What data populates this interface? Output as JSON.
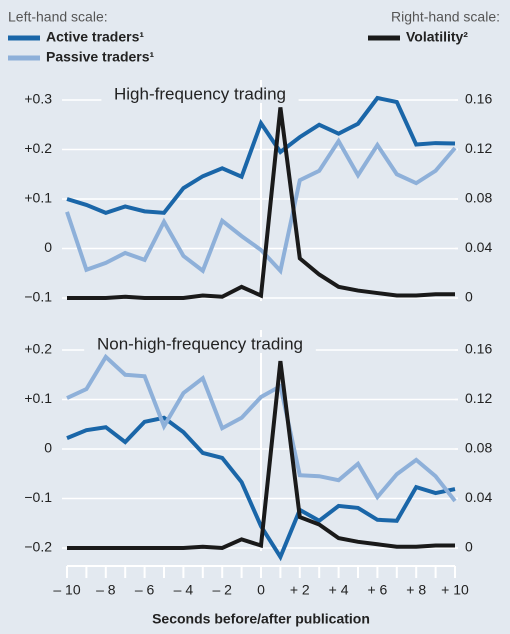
{
  "chart_data": [
    {
      "type": "line",
      "title": "High-frequency trading",
      "left_scale_label": "Left-hand scale:",
      "right_scale_label": "Right-hand scale:",
      "x": [
        -10,
        -9,
        -8,
        -7,
        -6,
        -5,
        -4,
        -3,
        -2,
        -1,
        0,
        1,
        2,
        3,
        4,
        5,
        6,
        7,
        8,
        9,
        10
      ],
      "xlim": [
        -10,
        10
      ],
      "ylim": [
        -0.1,
        0.3
      ],
      "yticks": [
        {
          "value": 0.3,
          "label": "+0.3"
        },
        {
          "value": 0.2,
          "label": "+0.2"
        },
        {
          "value": 0.1,
          "label": "+0.1"
        },
        0,
        {
          "value": -0.1,
          "label": "−0.1"
        }
      ],
      "y2lim": [
        0,
        0.16
      ],
      "y2ticks": [
        0.16,
        0.12,
        0.08,
        0.04,
        0
      ],
      "grid": true,
      "series": [
        {
          "name": "Active traders¹",
          "color": "#1a66a8",
          "values": [
            0.1,
            0.088,
            0.072,
            0.085,
            0.075,
            0.072,
            0.122,
            0.146,
            0.162,
            0.145,
            0.253,
            0.195,
            0.225,
            0.25,
            0.232,
            0.252,
            0.304,
            0.296,
            0.21,
            0.213,
            0.212
          ]
        },
        {
          "name": "Passive traders¹",
          "color": "#8eb0d9",
          "values": [
            0.074,
            -0.043,
            -0.029,
            -0.009,
            -0.023,
            0.054,
            -0.015,
            -0.045,
            0.056,
            0.025,
            -0.003,
            -0.045,
            0.138,
            0.157,
            0.217,
            0.148,
            0.209,
            0.15,
            0.132,
            0.157,
            0.203
          ]
        },
        {
          "name": "Volatility²",
          "color": "#1a1a1a",
          "axis": "y2",
          "values": [
            0,
            0,
            0,
            0.001,
            0,
            0,
            0,
            0.002,
            0.001,
            0.009,
            0.002,
            0.154,
            0.032,
            0.019,
            0.009,
            0.006,
            0.004,
            0.002,
            0.002,
            0.003,
            0.003
          ]
        }
      ]
    },
    {
      "type": "line",
      "title": "Non-high-frequency trading",
      "x": [
        -10,
        -9,
        -8,
        -7,
        -6,
        -5,
        -4,
        -3,
        -2,
        -1,
        0,
        1,
        2,
        3,
        4,
        5,
        6,
        7,
        8,
        9,
        10
      ],
      "xlim": [
        -10,
        10
      ],
      "xlabel": "Seconds before/after publication",
      "xticks": [
        {
          "value": -10,
          "label": "– 10"
        },
        {
          "value": -8,
          "label": "– 8"
        },
        {
          "value": -6,
          "label": "– 6"
        },
        {
          "value": -4,
          "label": "– 4"
        },
        {
          "value": -2,
          "label": "– 2"
        },
        0,
        {
          "value": 2,
          "label": "+ 2"
        },
        {
          "value": 4,
          "label": "+ 4"
        },
        {
          "value": 6,
          "label": "+ 6"
        },
        {
          "value": 8,
          "label": "+ 8"
        },
        {
          "value": 10,
          "label": "+ 10"
        }
      ],
      "xminorticks": [
        -9,
        -7,
        -5,
        -3,
        -1,
        1,
        3,
        5,
        7,
        9
      ],
      "ylim": [
        -0.2,
        0.2
      ],
      "yticks": [
        {
          "value": 0.2,
          "label": "+0.2"
        },
        {
          "value": 0.1,
          "label": "+0.1"
        },
        0,
        {
          "value": -0.1,
          "label": "−0.1"
        },
        {
          "value": -0.2,
          "label": "−0.2"
        }
      ],
      "y2lim": [
        0,
        0.16
      ],
      "y2ticks": [
        0.16,
        0.12,
        0.08,
        0.04,
        0
      ],
      "grid": true,
      "series": [
        {
          "color": "#1a66a8",
          "values": [
            0.022,
            0.038,
            0.044,
            0.014,
            0.055,
            0.063,
            0.034,
            -0.008,
            -0.018,
            -0.067,
            -0.156,
            -0.218,
            -0.123,
            -0.145,
            -0.115,
            -0.119,
            -0.143,
            -0.145,
            -0.077,
            -0.089,
            -0.081
          ]
        },
        {
          "color": "#8eb0d9",
          "values": [
            0.103,
            0.121,
            0.186,
            0.15,
            0.147,
            0.046,
            0.113,
            0.143,
            0.042,
            0.063,
            0.105,
            0.127,
            -0.053,
            -0.055,
            -0.063,
            -0.03,
            -0.097,
            -0.051,
            -0.022,
            -0.055,
            -0.105
          ]
        },
        {
          "color": "#1a1a1a",
          "axis": "y2",
          "values": [
            0,
            0,
            0,
            0,
            0,
            0,
            0,
            0.001,
            0,
            0.007,
            0.002,
            0.151,
            0.025,
            0.019,
            0.008,
            0.005,
            0.003,
            0.001,
            0.001,
            0.002,
            0.002
          ]
        }
      ]
    }
  ]
}
